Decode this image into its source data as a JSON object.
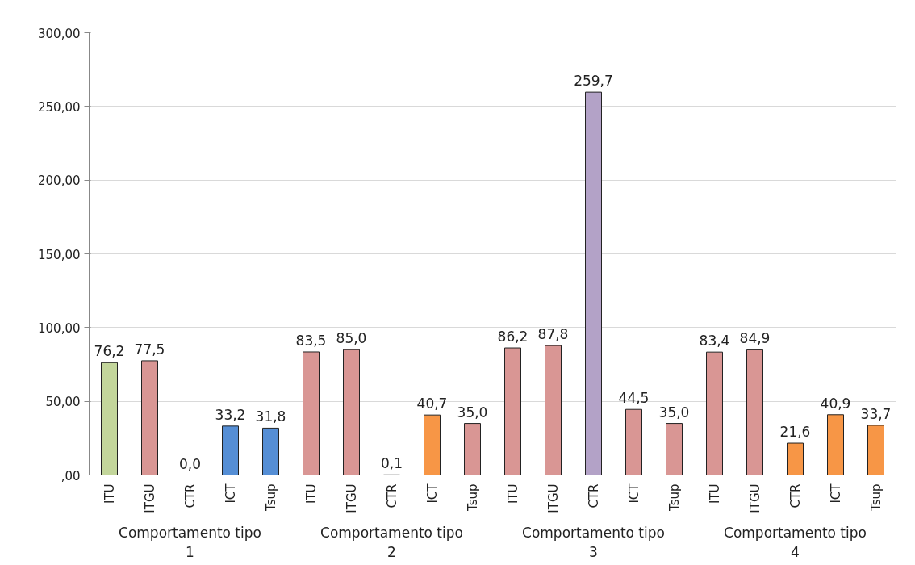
{
  "chart_data": {
    "type": "bar",
    "categories": [
      "ITU",
      "ITGU",
      "CTR",
      "ICT",
      "Tsup",
      "ITU",
      "ITGU",
      "CTR",
      "ICT",
      "Tsup",
      "ITU",
      "ITGU",
      "CTR",
      "ICT",
      "Tsup",
      "ITU",
      "ITGU",
      "CTR",
      "ICT",
      "Tsup"
    ],
    "values": [
      76.2,
      77.5,
      0.0,
      33.2,
      31.8,
      83.5,
      85.0,
      0.1,
      40.7,
      35.0,
      86.2,
      87.8,
      259.7,
      44.5,
      35.0,
      83.4,
      84.9,
      21.6,
      40.9,
      33.7
    ],
    "colors": [
      "#c3d69b",
      "#d99694",
      "#222222",
      "#558ed5",
      "#558ed5",
      "#d99694",
      "#d99694",
      "#222222",
      "#f79646",
      "#d99694",
      "#d99694",
      "#d99694",
      "#b3a2c7",
      "#d99694",
      "#d99694",
      "#d99694",
      "#d99694",
      "#f79646",
      "#f79646",
      "#f79646"
    ],
    "value_labels": [
      "76,2",
      "77,5",
      "0,0",
      "33,2",
      "31,8",
      "83,5",
      "85,0",
      "0,1",
      "40,7",
      "35,0",
      "86,2",
      "87,8",
      "259,7",
      "44,5",
      "35,0",
      "83,4",
      "84,9",
      "21,6",
      "40,9",
      "33,7"
    ],
    "annotations": [
      "Comportamento tipo\n1",
      "Comportamento tipo\n2",
      "Comportamento tipo\n3",
      "Comportamento tipo\n4"
    ],
    "ylim": [
      0,
      300
    ],
    "yticks": [
      {
        "value": 0,
        "label": ",00"
      },
      {
        "value": 50,
        "label": "50,00"
      },
      {
        "value": 100,
        "label": "100,00"
      },
      {
        "value": 150,
        "label": "150,00"
      },
      {
        "value": 200,
        "label": "200,00"
      },
      {
        "value": 250,
        "label": "250,00"
      },
      {
        "value": 300,
        "label": "300,00"
      }
    ],
    "grid": "y"
  }
}
